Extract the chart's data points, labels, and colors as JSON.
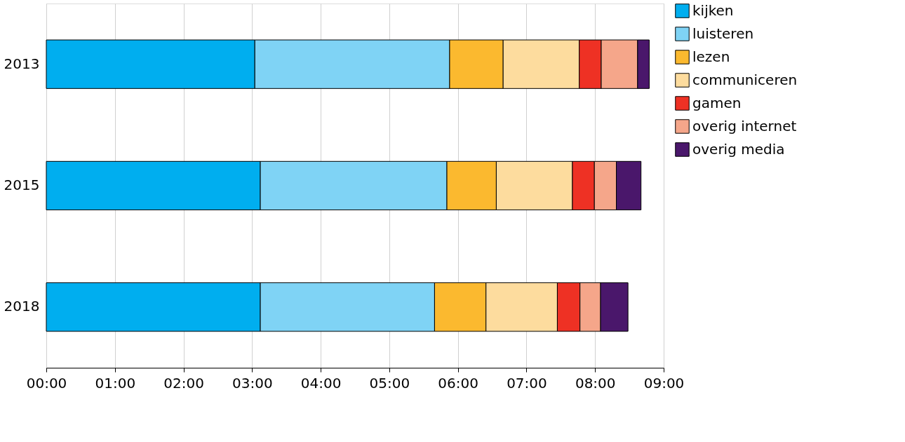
{
  "chart_data": {
    "type": "bar",
    "orientation": "horizontal",
    "stacked": true,
    "categories": [
      "2013",
      "2015",
      "2018"
    ],
    "series": [
      {
        "name": "kijken",
        "color": "#00aeef",
        "values": [
          3.04,
          3.12,
          3.12
        ]
      },
      {
        "name": "luisteren",
        "color": "#7fd3f5",
        "values": [
          2.84,
          2.72,
          2.54
        ]
      },
      {
        "name": "lezen",
        "color": "#fbb92f",
        "values": [
          0.78,
          0.72,
          0.75
        ]
      },
      {
        "name": "communiceren",
        "color": "#fddc9e",
        "values": [
          1.11,
          1.11,
          1.04
        ]
      },
      {
        "name": "gamen",
        "color": "#ee3124",
        "values": [
          0.32,
          0.32,
          0.33
        ]
      },
      {
        "name": "overig internet",
        "color": "#f5a68a",
        "values": [
          0.53,
          0.32,
          0.3
        ]
      },
      {
        "name": "overig media",
        "color": "#4a176b",
        "values": [
          0.17,
          0.36,
          0.4
        ]
      }
    ],
    "xlim": [
      0,
      9
    ],
    "xticks": [
      {
        "value": 0,
        "label": "00:00"
      },
      {
        "value": 1,
        "label": "01:00"
      },
      {
        "value": 2,
        "label": "02:00"
      },
      {
        "value": 3,
        "label": "03:00"
      },
      {
        "value": 4,
        "label": "04:00"
      },
      {
        "value": 5,
        "label": "05:00"
      },
      {
        "value": 6,
        "label": "06:00"
      },
      {
        "value": 7,
        "label": "07:00"
      },
      {
        "value": 8,
        "label": "08:00"
      },
      {
        "value": 9,
        "label": "09:00"
      }
    ],
    "grid": "x",
    "legend": "top right"
  }
}
